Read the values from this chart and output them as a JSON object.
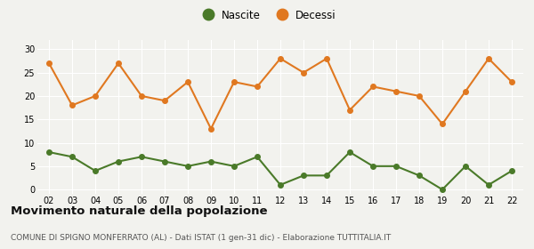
{
  "years": [
    "02",
    "03",
    "04",
    "05",
    "06",
    "07",
    "08",
    "09",
    "10",
    "11",
    "12",
    "13",
    "14",
    "15",
    "16",
    "17",
    "18",
    "19",
    "20",
    "21",
    "22"
  ],
  "nascite": [
    8,
    7,
    4,
    6,
    7,
    6,
    5,
    6,
    5,
    7,
    1,
    3,
    3,
    8,
    5,
    5,
    3,
    0,
    5,
    1,
    4
  ],
  "decessi": [
    27,
    18,
    20,
    27,
    20,
    19,
    23,
    13,
    23,
    22,
    28,
    25,
    28,
    17,
    22,
    21,
    20,
    14,
    21,
    28,
    23
  ],
  "nascite_color": "#4a7a29",
  "decessi_color": "#e07820",
  "background_color": "#f2f2ee",
  "grid_color": "#ffffff",
  "title": "Movimento naturale della popolazione",
  "subtitle": "COMUNE DI SPIGNO MONFERRATO (AL) - Dati ISTAT (1 gen-31 dic) - Elaborazione TUTTITALIA.IT",
  "legend_labels": [
    "Nascite",
    "Decessi"
  ],
  "ylim": [
    -1,
    32
  ],
  "yticks": [
    0,
    5,
    10,
    15,
    20,
    25,
    30
  ],
  "marker_size": 4,
  "line_width": 1.5
}
